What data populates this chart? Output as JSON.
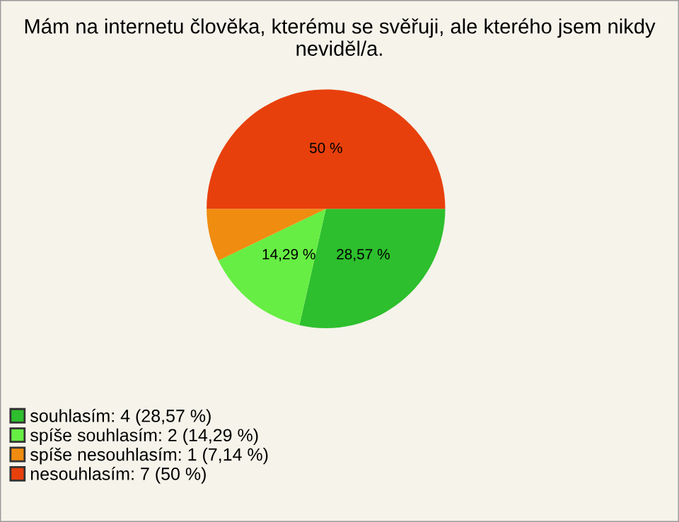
{
  "chart_data": {
    "type": "pie",
    "title": "Mám na internetu člověka, kterému se svěřuji, ale kterého jsem nikdy neviděl/a.",
    "categories": [
      "souhlasím: 4 (28,57 %)",
      "spíše souhlasím: 2 (14,29 %)",
      "spíše nesouhlasím: 1 (7,14 %)",
      "nesouhlasím: 7 (50 %)"
    ],
    "values": [
      28.57,
      14.29,
      7.14,
      50
    ],
    "colors": [
      "#2dbf2d",
      "#66ee44",
      "#f08c10",
      "#e8400c"
    ],
    "value_labels": [
      "28,57 %",
      "14,29 %",
      null,
      "50 %"
    ],
    "legend": "bottom left"
  }
}
